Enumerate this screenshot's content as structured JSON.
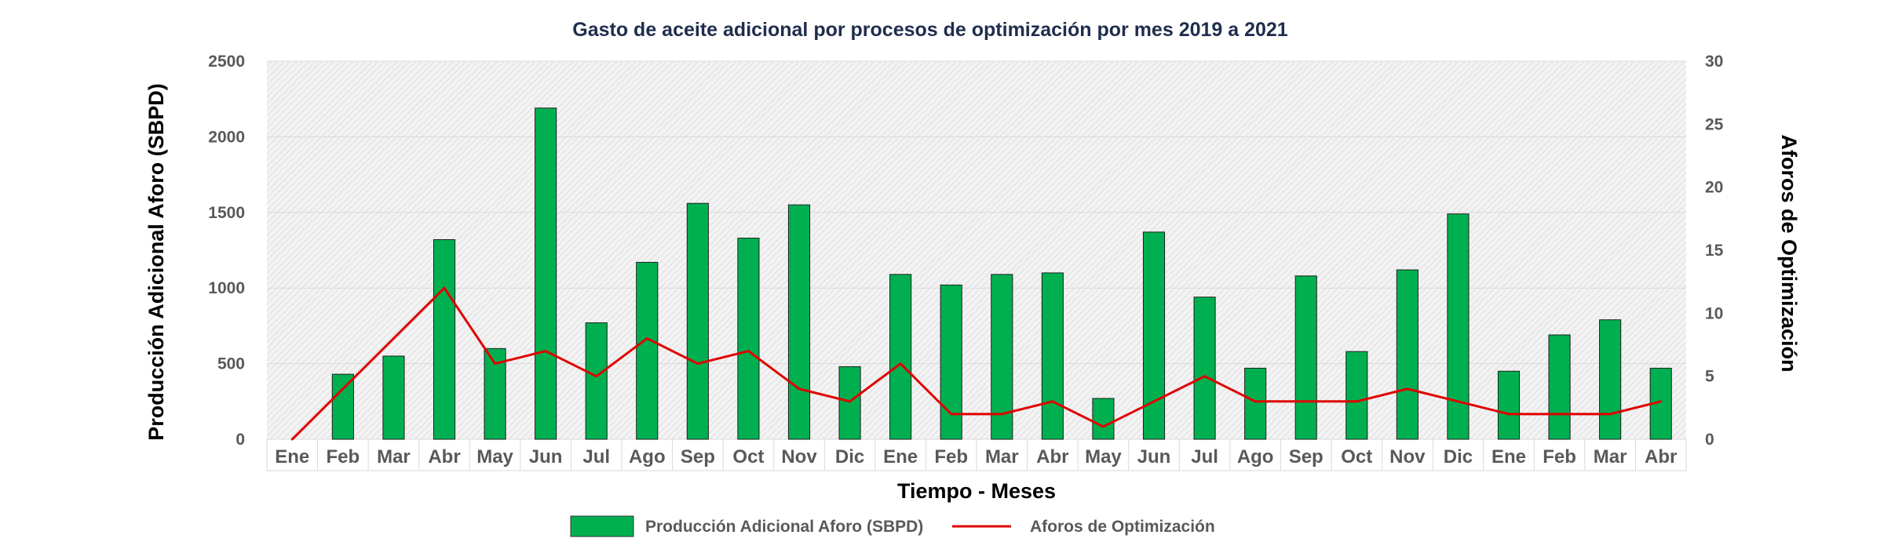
{
  "chart_data": {
    "type": "bar",
    "title": "Gasto de aceite adicional por procesos de optimización por mes 2019 a 2021",
    "xlabel": "Tiempo - Meses",
    "ylabel": "Producción Adicional Aforo (SBPD)",
    "y2label": "Aforos de Optimización",
    "ylim": [
      0,
      2500
    ],
    "y2lim": [
      0,
      30
    ],
    "yticks": [
      "0",
      "500",
      "1000",
      "1500",
      "2000",
      "2500"
    ],
    "y2ticks": [
      "0",
      "5",
      "10",
      "15",
      "20",
      "25",
      "30"
    ],
    "grid": true,
    "legend_position": "bottom",
    "categories": [
      "Ene",
      "Feb",
      "Mar",
      "Abr",
      "May",
      "Jun",
      "Jul",
      "Ago",
      "Sep",
      "Oct",
      "Nov",
      "Dic",
      "Ene",
      "Feb",
      "Mar",
      "Abr",
      "May",
      "Jun",
      "Jul",
      "Ago",
      "Sep",
      "Oct",
      "Nov",
      "Dic",
      "Ene",
      "Feb",
      "Mar",
      "Abr"
    ],
    "series": [
      {
        "name": "Producción Adicional Aforo (SBPD)",
        "type": "bar",
        "axis": "left",
        "color": "#00b050",
        "values": [
          0,
          430,
          550,
          1320,
          600,
          2190,
          770,
          1170,
          1560,
          1330,
          1550,
          480,
          1090,
          1020,
          1090,
          1100,
          270,
          1370,
          940,
          470,
          1080,
          580,
          1120,
          1490,
          450,
          690,
          790,
          470
        ]
      },
      {
        "name": "Aforos de Optimización",
        "type": "line",
        "axis": "right",
        "color": "#e00000",
        "values": [
          0,
          4,
          8,
          12,
          6,
          7,
          5,
          8,
          6,
          7,
          4,
          3,
          6,
          2,
          2,
          3,
          1,
          3,
          5,
          3,
          3,
          3,
          4,
          3,
          2,
          2,
          2,
          3
        ]
      }
    ]
  }
}
